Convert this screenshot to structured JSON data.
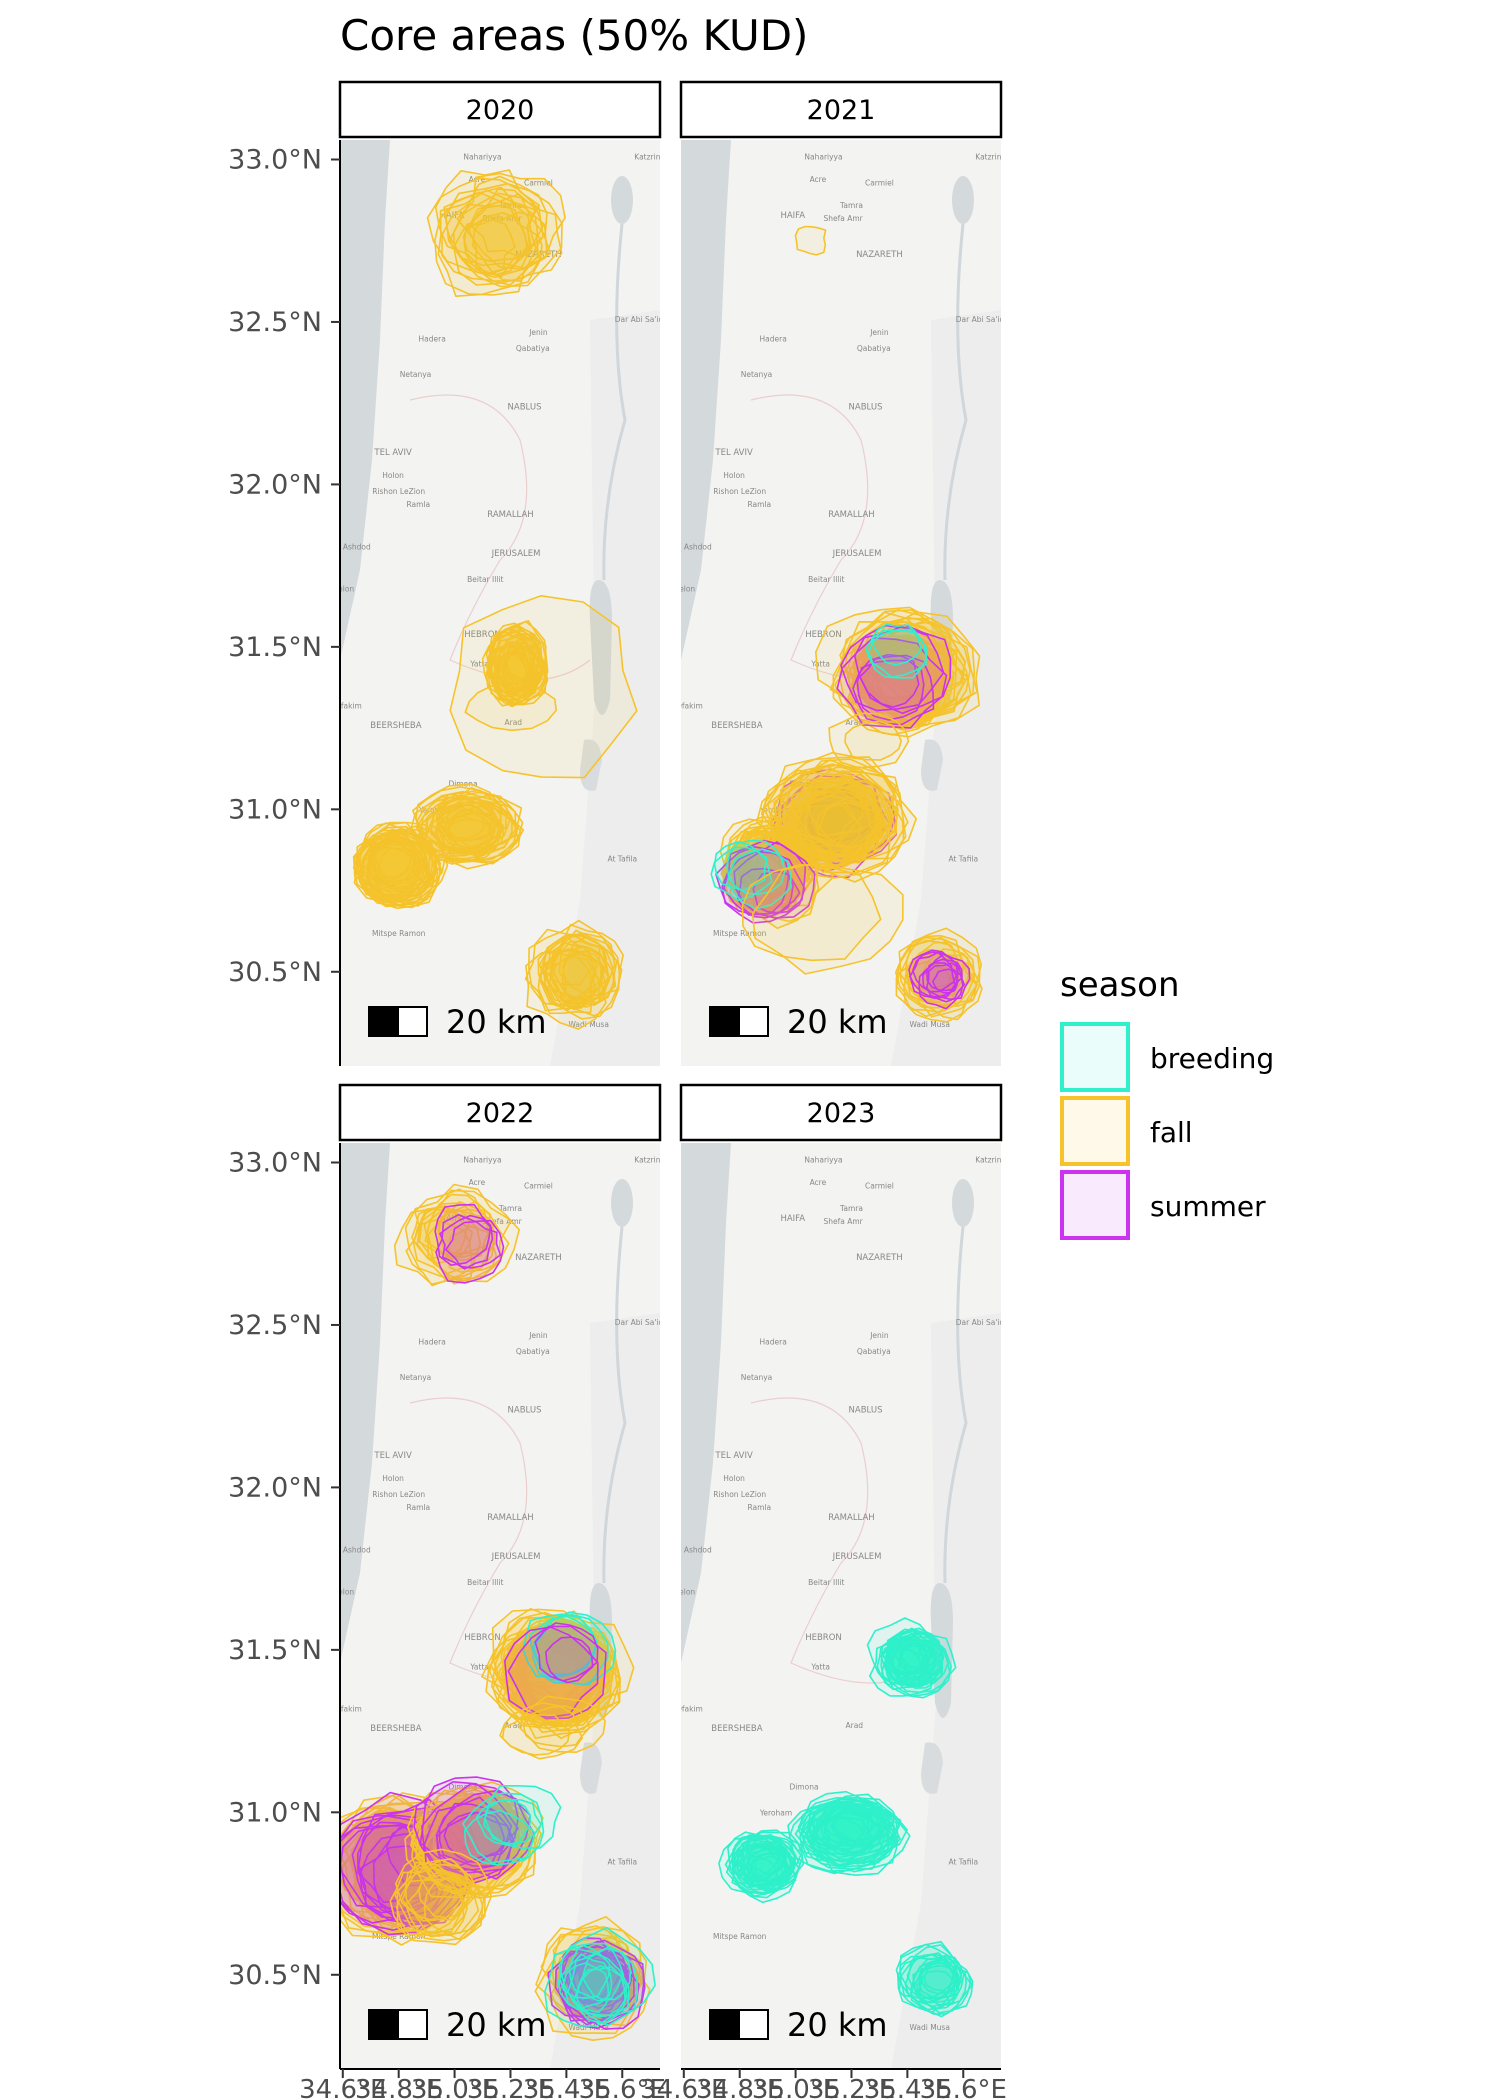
{
  "title": "Core areas (50% KUD)",
  "facets": [
    {
      "label": "2020"
    },
    {
      "label": "2021"
    },
    {
      "label": "2022"
    },
    {
      "label": "2023"
    }
  ],
  "scale_bar": "20 km",
  "y_ticks": [
    "33.0°N",
    "32.5°N",
    "32.0°N",
    "31.5°N",
    "31.0°N",
    "30.5°N"
  ],
  "x_ticks": [
    "34.6°E",
    "34.8°E",
    "35.0°E",
    "35.2°E",
    "35.4°E",
    "35.6°E"
  ],
  "legend": {
    "title": "season",
    "items": [
      {
        "label": "breeding",
        "color": "#30f0cc"
      },
      {
        "label": "fall",
        "color": "#f6c32c"
      },
      {
        "label": "summer",
        "color": "#cc33ee"
      }
    ]
  },
  "map_labels": [
    {
      "text": "Nahariyya",
      "lon": 35.1,
      "lat": 33.0
    },
    {
      "text": "Katzrin",
      "lon": 35.69,
      "lat": 33.0
    },
    {
      "text": "Acre",
      "lon": 35.08,
      "lat": 32.93
    },
    {
      "text": "Carmiel",
      "lon": 35.3,
      "lat": 32.92
    },
    {
      "text": "Tamra",
      "lon": 35.2,
      "lat": 32.85
    },
    {
      "text": "Shefa Amr",
      "lon": 35.17,
      "lat": 32.81
    },
    {
      "text": "HAIFA",
      "lon": 34.99,
      "lat": 32.82
    },
    {
      "text": "NAZARETH",
      "lon": 35.3,
      "lat": 32.7
    },
    {
      "text": "Hadera",
      "lon": 34.92,
      "lat": 32.44
    },
    {
      "text": "Jenin",
      "lon": 35.3,
      "lat": 32.46
    },
    {
      "text": "Qabatiya",
      "lon": 35.28,
      "lat": 32.41
    },
    {
      "text": "Dar Abi Sa'id",
      "lon": 35.66,
      "lat": 32.5
    },
    {
      "text": "Netanya",
      "lon": 34.86,
      "lat": 32.33
    },
    {
      "text": "NABLUS",
      "lon": 35.25,
      "lat": 32.23
    },
    {
      "text": "TEL AVIV",
      "lon": 34.78,
      "lat": 32.09
    },
    {
      "text": "Holon",
      "lon": 34.78,
      "lat": 32.02
    },
    {
      "text": "Rishon LeZion",
      "lon": 34.8,
      "lat": 31.97
    },
    {
      "text": "Ramla",
      "lon": 34.87,
      "lat": 31.93
    },
    {
      "text": "RAMALLAH",
      "lon": 35.2,
      "lat": 31.9
    },
    {
      "text": "Ashdod",
      "lon": 34.65,
      "lat": 31.8
    },
    {
      "text": "JERUSALEM",
      "lon": 35.22,
      "lat": 31.78
    },
    {
      "text": "Beitar Illit",
      "lon": 35.11,
      "lat": 31.7
    },
    {
      "text": "Ashkelon",
      "lon": 34.58,
      "lat": 31.67
    },
    {
      "text": "HEBRON",
      "lon": 35.1,
      "lat": 31.53
    },
    {
      "text": "Yatta",
      "lon": 35.09,
      "lat": 31.44
    },
    {
      "text": "Ofakim",
      "lon": 34.62,
      "lat": 31.31
    },
    {
      "text": "Arad",
      "lon": 35.21,
      "lat": 31.26
    },
    {
      "text": "BEERSHEBA",
      "lon": 34.79,
      "lat": 31.25
    },
    {
      "text": "Dimona",
      "lon": 35.03,
      "lat": 31.07
    },
    {
      "text": "Yeroham",
      "lon": 34.93,
      "lat": 30.99
    },
    {
      "text": "At Tafila",
      "lon": 35.6,
      "lat": 30.84
    },
    {
      "text": "Mitspe Ramon",
      "lon": 34.8,
      "lat": 30.61
    },
    {
      "text": "Wadi Musa",
      "lon": 35.48,
      "lat": 30.33
    }
  ]
}
